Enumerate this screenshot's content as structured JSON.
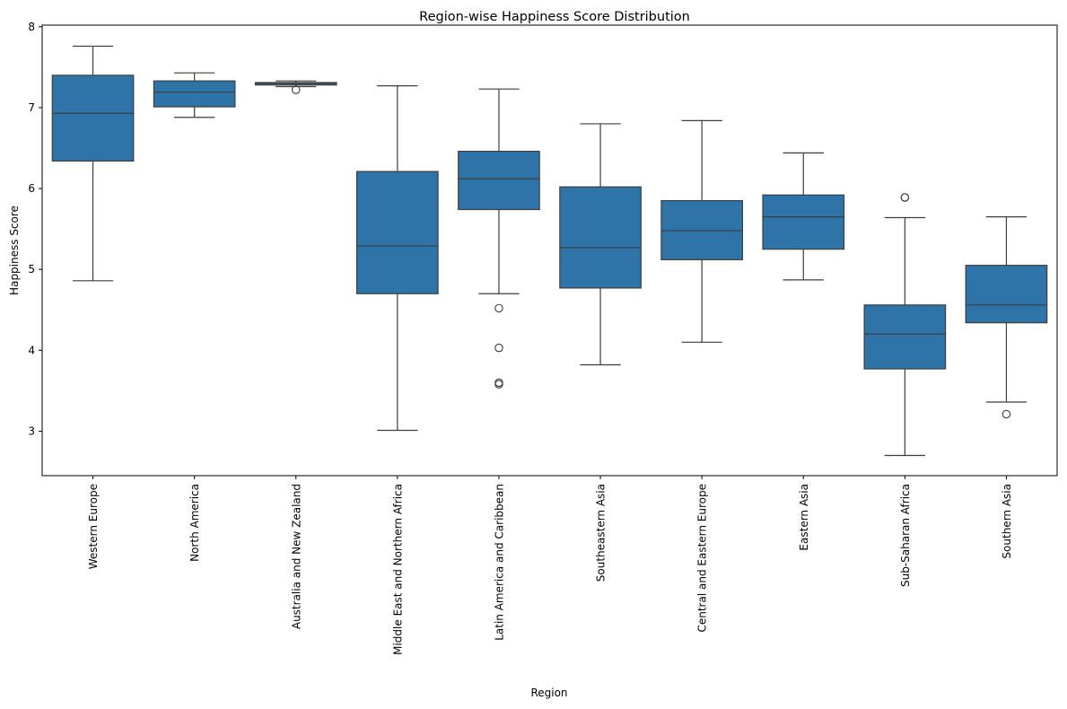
{
  "chart_data": {
    "type": "box",
    "title": "Region-wise Happiness Score Distribution",
    "xlabel": "Region",
    "ylabel": "Happiness Score",
    "ylim": [
      2.45,
      8.02
    ],
    "yticks": [
      3,
      4,
      5,
      6,
      7,
      8
    ],
    "grid": false,
    "box_color": "#2f74a8",
    "line_color": "#3d3d3d",
    "categories": [
      "Western Europe",
      "North America",
      "Australia and New Zealand",
      "Middle East and Northern Africa",
      "Latin America and Caribbean",
      "Southeastern Asia",
      "Central and Eastern Europe",
      "Eastern Asia",
      "Sub-Saharan Africa",
      "Southern Asia"
    ],
    "boxes": [
      {
        "whisker_low": 4.86,
        "q1": 6.34,
        "median": 6.93,
        "q3": 7.4,
        "whisker_high": 7.76,
        "outliers": []
      },
      {
        "whisker_low": 6.88,
        "q1": 7.01,
        "median": 7.19,
        "q3": 7.33,
        "whisker_high": 7.43,
        "outliers": []
      },
      {
        "whisker_low": 7.26,
        "q1": 7.28,
        "median": 7.3,
        "q3": 7.31,
        "whisker_high": 7.33,
        "outliers": [
          7.22
        ]
      },
      {
        "whisker_low": 3.01,
        "q1": 4.7,
        "median": 5.29,
        "q3": 6.21,
        "whisker_high": 7.27,
        "outliers": []
      },
      {
        "whisker_low": 4.7,
        "q1": 5.74,
        "median": 6.12,
        "q3": 6.46,
        "whisker_high": 7.23,
        "outliers": [
          4.52,
          4.03,
          3.6,
          3.58
        ]
      },
      {
        "whisker_low": 3.82,
        "q1": 4.77,
        "median": 5.27,
        "q3": 6.02,
        "whisker_high": 6.8,
        "outliers": []
      },
      {
        "whisker_low": 4.1,
        "q1": 5.12,
        "median": 5.48,
        "q3": 5.85,
        "whisker_high": 6.84,
        "outliers": []
      },
      {
        "whisker_low": 4.87,
        "q1": 5.25,
        "median": 5.65,
        "q3": 5.92,
        "whisker_high": 6.44,
        "outliers": []
      },
      {
        "whisker_low": 2.7,
        "q1": 3.77,
        "median": 4.2,
        "q3": 4.56,
        "whisker_high": 5.64,
        "outliers": [
          5.89,
          5.89
        ]
      },
      {
        "whisker_low": 3.36,
        "q1": 4.34,
        "median": 4.56,
        "q3": 5.05,
        "whisker_high": 5.65,
        "outliers": [
          3.21
        ]
      }
    ]
  }
}
